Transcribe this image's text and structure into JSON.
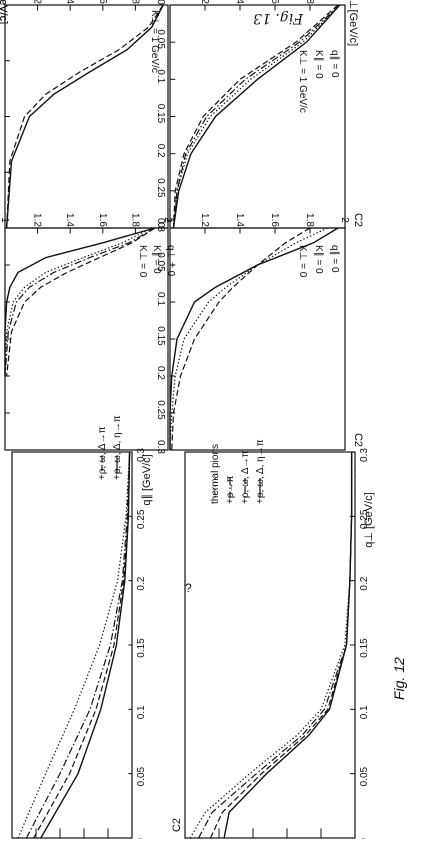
{
  "page": {
    "handwriting_top": "Fig. 13",
    "handwriting_mid": "Fig. 12",
    "stray_mark": "?"
  },
  "chart_data": [
    {
      "type": "line",
      "ylabel": "C2",
      "xlabel": "q∥ [GeV/c]",
      "xlim": [
        0,
        0.3
      ],
      "ylim": [
        1.0,
        2.0
      ],
      "xticks": [
        "0",
        "0.05",
        "0.1",
        "0.15",
        "0.2",
        "0.25",
        "0.3"
      ],
      "yticks": [
        "1",
        "1.2",
        "1.4",
        "1.6",
        "1.8",
        "2"
      ],
      "legend": [
        "thermal pions",
        "+ρ→π",
        "+ρ, ω, Δ→π",
        "+ρ, ω, Δ, η→π"
      ],
      "legend_visible": [
        "",
        "",
        "+ρ, ω, Δ→π",
        "+ρ, ω, Δ, η→π"
      ],
      "series": [
        {
          "name": "thermal pions",
          "style": "dotted",
          "x": [
            0,
            0.05,
            0.1,
            0.15,
            0.2,
            0.25,
            0.3
          ],
          "y": [
            1.95,
            1.72,
            1.48,
            1.27,
            1.12,
            1.05,
            1.02
          ]
        },
        {
          "name": "+ρ→π",
          "style": "dashdot",
          "x": [
            0,
            0.05,
            0.1,
            0.15,
            0.2,
            0.25,
            0.3
          ],
          "y": [
            1.88,
            1.6,
            1.35,
            1.18,
            1.08,
            1.04,
            1.02
          ]
        },
        {
          "name": "+ρ, ω, Δ→π",
          "style": "dashed",
          "x": [
            0,
            0.05,
            0.1,
            0.15,
            0.2,
            0.25,
            0.3
          ],
          "y": [
            1.82,
            1.52,
            1.3,
            1.15,
            1.07,
            1.03,
            1.02
          ]
        },
        {
          "name": "+ρ, ω, Δ, η→π",
          "style": "solid",
          "x": [
            0,
            0.05,
            0.1,
            0.15,
            0.2,
            0.25,
            0.3
          ],
          "y": [
            1.76,
            1.45,
            1.26,
            1.13,
            1.06,
            1.03,
            1.02
          ]
        }
      ]
    },
    {
      "type": "line",
      "ylabel": "C2",
      "xlabel": "q⊥ [GeV/c]",
      "xlim": [
        0,
        0.3
      ],
      "ylim": [
        1.0,
        2.0
      ],
      "xticks": [
        "0",
        "0.05",
        "0.1",
        "0.15",
        "0.2",
        "0.25",
        "0.3"
      ],
      "yticks": [
        "1",
        "1.2",
        "1.4",
        "1.6",
        "1.8",
        "2"
      ],
      "legend": [
        "thermal pions",
        "+ρ→π",
        "+ρ, ω, Δ→π",
        "+ρ, ω, Δ, η→π"
      ],
      "series": [
        {
          "name": "thermal pions",
          "style": "dotted",
          "x": [
            0,
            0.02,
            0.05,
            0.08,
            0.1,
            0.15,
            0.2,
            0.25,
            0.3
          ],
          "y": [
            1.97,
            1.88,
            1.62,
            1.34,
            1.2,
            1.06,
            1.03,
            1.02,
            1.02
          ]
        },
        {
          "name": "+ρ→π",
          "style": "dashdot",
          "x": [
            0,
            0.02,
            0.05,
            0.08,
            0.1,
            0.15,
            0.2,
            0.25,
            0.3
          ],
          "y": [
            1.92,
            1.84,
            1.58,
            1.31,
            1.18,
            1.05,
            1.03,
            1.02,
            1.02
          ]
        },
        {
          "name": "+ρ, ω, Δ→π",
          "style": "dashed",
          "x": [
            0,
            0.02,
            0.05,
            0.08,
            0.1,
            0.15,
            0.2,
            0.25,
            0.3
          ],
          "y": [
            1.85,
            1.78,
            1.55,
            1.29,
            1.16,
            1.05,
            1.03,
            1.02,
            1.02
          ]
        },
        {
          "name": "+ρ, ω, Δ, η→π",
          "style": "solid",
          "x": [
            0,
            0.02,
            0.05,
            0.08,
            0.1,
            0.15,
            0.2,
            0.25,
            0.3
          ],
          "y": [
            1.77,
            1.74,
            1.52,
            1.27,
            1.15,
            1.05,
            1.03,
            1.02,
            1.02
          ]
        }
      ]
    },
    {
      "type": "line",
      "ylabel": "C2",
      "xlabel": "q∥[GeV/c]",
      "xlim": [
        0,
        0.3
      ],
      "ylim": [
        1.0,
        2.0
      ],
      "xticks": [
        "0",
        "0.05",
        "0.1",
        "0.15",
        "0.2",
        "0.25",
        "0.3"
      ],
      "yticks": [
        "1",
        "1.2",
        "1.4",
        "1.6",
        "1.8",
        "2"
      ],
      "annotation": [
        "K⊥ = 0",
        "K∥ = 0",
        "q⊥ = 0"
      ],
      "series": [
        {
          "style": "solid",
          "x": [
            0,
            0.02,
            0.04,
            0.06,
            0.08,
            0.1,
            0.14,
            0.2
          ],
          "y": [
            1.92,
            1.6,
            1.25,
            1.08,
            1.03,
            1.01,
            1.0,
            1.0
          ]
        },
        {
          "style": "dotted",
          "x": [
            0,
            0.02,
            0.04,
            0.06,
            0.08,
            0.1,
            0.14,
            0.2
          ],
          "y": [
            1.9,
            1.72,
            1.48,
            1.25,
            1.12,
            1.05,
            1.01,
            1.0
          ]
        },
        {
          "style": "dashdot",
          "x": [
            0,
            0.02,
            0.04,
            0.06,
            0.08,
            0.1,
            0.14,
            0.2
          ],
          "y": [
            1.92,
            1.76,
            1.52,
            1.3,
            1.15,
            1.07,
            1.02,
            1.0
          ]
        },
        {
          "style": "dashed",
          "x": [
            0,
            0.02,
            0.04,
            0.06,
            0.08,
            0.1,
            0.14,
            0.2
          ],
          "y": [
            1.92,
            1.78,
            1.58,
            1.38,
            1.22,
            1.12,
            1.04,
            1.01
          ]
        }
      ]
    },
    {
      "type": "line",
      "ylabel": "C2",
      "xlabel": "q∥[GeV/c]",
      "xlim": [
        0,
        0.2
      ],
      "ylim": [
        1.0,
        2.0
      ],
      "xticks": [
        "0",
        "0.05",
        "0.1",
        "0.15",
        "0.2"
      ],
      "yticks": [
        "1",
        "1.2",
        "1.4",
        "1.6",
        "1.8",
        "2"
      ],
      "annotation": [
        "K⊥ = 1 GeV/c"
      ],
      "series": [
        {
          "style": "solid",
          "x": [
            0,
            0.02,
            0.04,
            0.06,
            0.08,
            0.1,
            0.14,
            0.2
          ],
          "y": [
            1.97,
            1.9,
            1.75,
            1.52,
            1.3,
            1.15,
            1.04,
            1.01
          ]
        },
        {
          "style": "dashed",
          "x": [
            0,
            0.02,
            0.04,
            0.06,
            0.08,
            0.1,
            0.14,
            0.2
          ],
          "y": [
            1.97,
            1.88,
            1.7,
            1.46,
            1.25,
            1.12,
            1.03,
            1.01
          ]
        }
      ]
    },
    {
      "type": "line",
      "ylabel": "C2",
      "xlabel": "q⊥[GeV/c]",
      "xlim": [
        0,
        0.3
      ],
      "ylim": [
        1.0,
        2.0
      ],
      "xticks": [
        "0",
        "0.05",
        "0.1",
        "0.15",
        "0.2",
        "0.25",
        "0.3"
      ],
      "yticks": [
        "1",
        "1.2",
        "1.4",
        "1.6",
        "1.8",
        "2"
      ],
      "annotation": [
        "K⊥ = 1 GeV/c",
        "K∥ = 0",
        "q∥ = 0"
      ],
      "series": [
        {
          "style": "solid",
          "x": [
            0,
            0.05,
            0.1,
            0.15,
            0.2,
            0.25,
            0.3
          ],
          "y": [
            1.97,
            1.78,
            1.5,
            1.26,
            1.12,
            1.05,
            1.02
          ]
        },
        {
          "style": "dotted",
          "x": [
            0,
            0.05,
            0.1,
            0.15,
            0.2,
            0.25,
            0.3
          ],
          "y": [
            1.97,
            1.76,
            1.46,
            1.23,
            1.1,
            1.04,
            1.02
          ]
        },
        {
          "style": "dashdot",
          "x": [
            0,
            0.05,
            0.1,
            0.15,
            0.2,
            0.25,
            0.3
          ],
          "y": [
            1.97,
            1.74,
            1.43,
            1.21,
            1.09,
            1.04,
            1.02
          ]
        },
        {
          "style": "dashed",
          "x": [
            0,
            0.05,
            0.1,
            0.15,
            0.2,
            0.25,
            0.3
          ],
          "y": [
            1.96,
            1.72,
            1.4,
            1.19,
            1.08,
            1.03,
            1.02
          ]
        }
      ]
    },
    {
      "type": "line",
      "ylabel": "C2",
      "xlabel": "q⊥[GeV/c]",
      "xlim": [
        0,
        0.3
      ],
      "ylim": [
        1.0,
        2.0
      ],
      "xticks": [
        "0",
        "0.05",
        "0.1",
        "0.15",
        "0.2",
        "0.25",
        "0.3"
      ],
      "yticks": [
        "1",
        "1.2",
        "1.4",
        "1.6",
        "1.8",
        "2"
      ],
      "annotation": [
        "K⊥ = 0",
        "K∥ = 0",
        "q∥ = 0"
      ],
      "series": [
        {
          "style": "solid",
          "x": [
            0,
            0.02,
            0.05,
            0.08,
            0.1,
            0.15,
            0.2,
            0.25,
            0.3
          ],
          "y": [
            1.96,
            1.82,
            1.5,
            1.26,
            1.14,
            1.04,
            1.01,
            1.0,
            1.0
          ]
        },
        {
          "style": "dotted",
          "x": [
            0,
            0.02,
            0.05,
            0.08,
            0.1,
            0.15,
            0.2,
            0.25,
            0.3
          ],
          "y": [
            1.9,
            1.72,
            1.5,
            1.32,
            1.22,
            1.08,
            1.03,
            1.01,
            1.0
          ]
        },
        {
          "style": "dashed",
          "x": [
            0,
            0.02,
            0.05,
            0.08,
            0.1,
            0.15,
            0.2,
            0.25,
            0.3
          ],
          "y": [
            1.8,
            1.66,
            1.5,
            1.36,
            1.28,
            1.14,
            1.06,
            1.02,
            1.01
          ]
        }
      ]
    }
  ]
}
